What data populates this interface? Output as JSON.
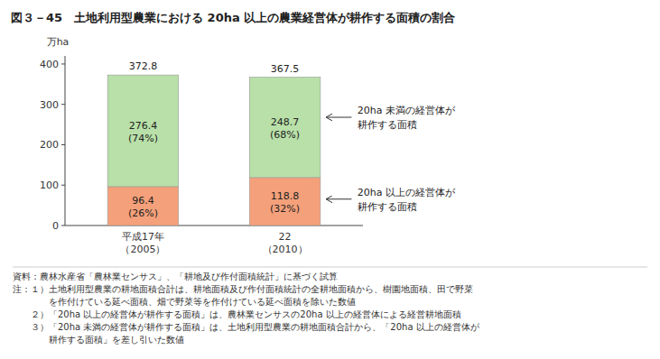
{
  "chart_data": {
    "type": "bar",
    "stacked": true,
    "data_labels": true,
    "grid": false,
    "title": "図３－45　土地利用型農業における 20ha 以上の農業経営体が耕作する面積の割合",
    "ylabel": "万ha",
    "categories": [
      "平成17年\n（2005）",
      "22\n（2010）"
    ],
    "series": [
      {
        "name": "20ha 以上の経営体が\n耕作する面積",
        "color": "#F4A07A",
        "values": [
          96.4,
          118.8
        ],
        "share_labels": [
          "(26%)",
          "(32%)"
        ]
      },
      {
        "name": "20ha 未満の経営体が\n耕作する面積",
        "color": "#B8E0A8",
        "values": [
          276.4,
          248.7
        ],
        "share_labels": [
          "(74%)",
          "(68%)"
        ]
      }
    ],
    "totals": [
      372.8,
      367.5
    ],
    "ylim": [
      0,
      420
    ],
    "yticks": [
      0,
      100,
      200,
      300,
      400
    ],
    "notes": [
      "資料：農林水産省「農林業センサス」、「耕地及び作付面積統計」に基づく試算",
      "注：１）土地利用型農業の耕地面積合計は、耕地面積及び作付面積統計の全耕地面積から、樹園地面積、田で野菜",
      "　　　　を作付けている延べ面積、畑で野菜等を作付けている延べ面積を除いた数値",
      "　　２）「20ha 以上の経営体が耕作する面積」は、農林業センサスの20ha 以上の経営体による経営耕地面積",
      "　　３）「20ha 未満の経営体が耕作する面積」は、土地利用型農業の耕地面積合計から、「20ha 以上の経営体が",
      "　　　　耕作する面積」を差し引いた数値"
    ]
  }
}
